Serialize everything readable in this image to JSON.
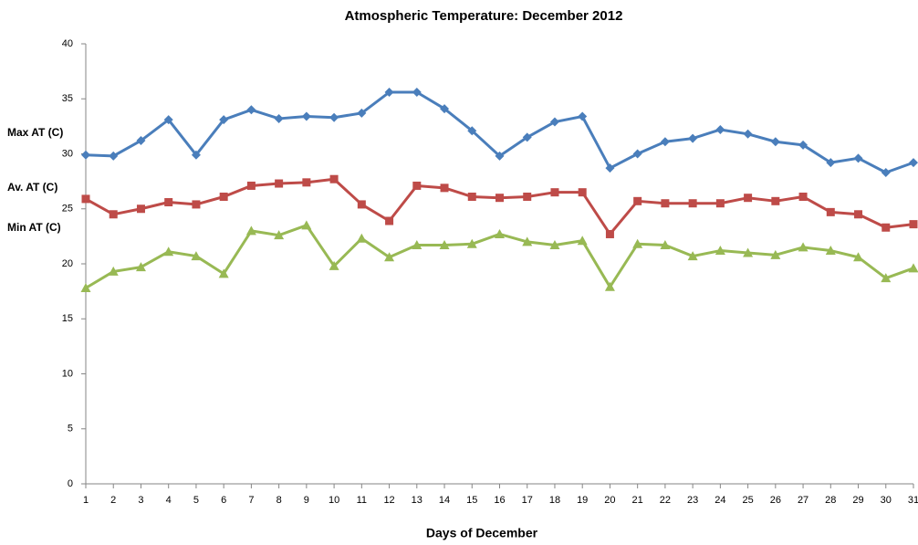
{
  "chart_data": {
    "type": "line",
    "title": "Atmospheric Temperature: December 2012",
    "x_label": "Days of December",
    "x": [
      1,
      2,
      3,
      4,
      5,
      6,
      7,
      8,
      9,
      10,
      11,
      12,
      13,
      14,
      15,
      16,
      17,
      18,
      19,
      20,
      21,
      22,
      23,
      24,
      25,
      26,
      27,
      28,
      29,
      30,
      31
    ],
    "xlim": [
      1,
      31
    ],
    "xticks": [
      1,
      2,
      3,
      4,
      5,
      6,
      7,
      8,
      9,
      10,
      11,
      12,
      13,
      14,
      15,
      16,
      17,
      18,
      19,
      20,
      21,
      22,
      23,
      24,
      25,
      26,
      27,
      28,
      29,
      30,
      31
    ],
    "ylim": [
      0,
      40
    ],
    "yticks": [
      0,
      5,
      10,
      15,
      20,
      25,
      30,
      35,
      40
    ],
    "grid": false,
    "series": [
      {
        "name": "Max AT (C)",
        "color": "#4a7ebb",
        "marker": "diamond",
        "values": [
          29.9,
          29.8,
          31.2,
          33.1,
          29.9,
          33.1,
          34.0,
          33.2,
          33.4,
          33.3,
          33.7,
          35.6,
          35.6,
          34.1,
          32.1,
          29.8,
          31.5,
          32.9,
          33.4,
          28.7,
          30.0,
          31.1,
          31.4,
          32.2,
          31.8,
          31.1,
          30.8,
          29.2,
          29.6,
          28.3,
          29.2
        ]
      },
      {
        "name": "Av. AT (C)",
        "color": "#be4b48",
        "marker": "square",
        "values": [
          25.9,
          24.5,
          25.0,
          25.6,
          25.4,
          26.1,
          27.1,
          27.3,
          27.4,
          27.7,
          25.4,
          23.9,
          27.1,
          26.9,
          26.1,
          26.0,
          26.1,
          26.5,
          26.5,
          22.7,
          25.7,
          25.5,
          25.5,
          25.5,
          26.0,
          25.7,
          26.1,
          24.7,
          24.5,
          23.3,
          23.6
        ]
      },
      {
        "name": "Min AT (C)",
        "color": "#98b954",
        "marker": "triangle",
        "values": [
          17.8,
          19.3,
          19.7,
          21.1,
          20.7,
          19.1,
          23.0,
          22.6,
          23.5,
          19.8,
          22.3,
          20.6,
          21.7,
          21.7,
          21.8,
          22.7,
          22.0,
          21.7,
          22.1,
          17.9,
          21.8,
          21.7,
          20.7,
          21.2,
          21.0,
          20.8,
          21.5,
          21.2,
          20.6,
          18.7,
          19.6
        ]
      }
    ]
  }
}
